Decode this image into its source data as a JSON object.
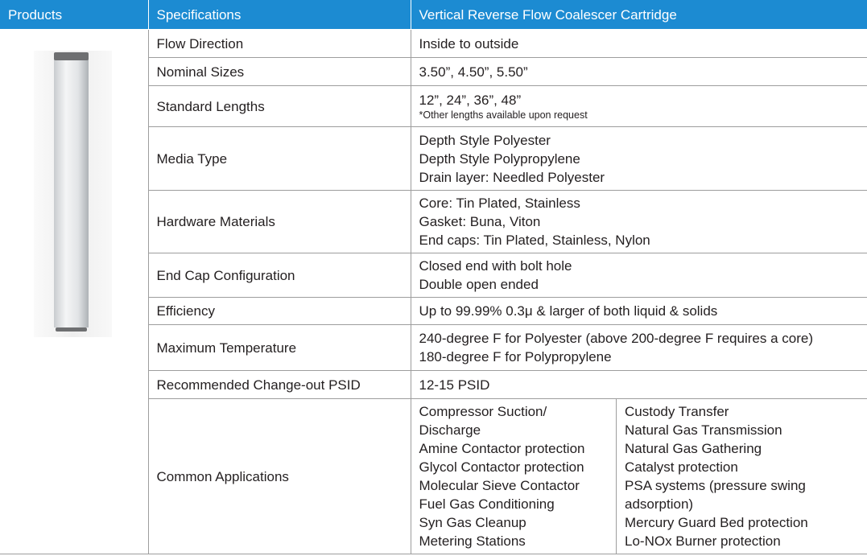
{
  "header": [
    "Products",
    "Specifications",
    "Vertical Reverse Flow Coalescer Cartridge"
  ],
  "rows": [
    {
      "label": "Flow Direction",
      "lines": [
        "Inside to outside"
      ]
    },
    {
      "label": "Nominal Sizes",
      "lines": [
        "3.50”, 4.50”, 5.50”"
      ]
    },
    {
      "label": "Standard Lengths",
      "lines": [
        "12”, 24”, 36”, 48”"
      ],
      "note": "*Other lengths available upon request"
    },
    {
      "label": "Media Type",
      "lines": [
        "Depth Style Polyester",
        "Depth Style Polypropylene",
        "Drain layer: Needled Polyester"
      ]
    },
    {
      "label": "Hardware Materials",
      "lines": [
        "Core: Tin Plated, Stainless",
        "Gasket: Buna, Viton",
        "End caps: Tin Plated, Stainless, Nylon"
      ]
    },
    {
      "label": "End Cap Configuration",
      "lines": [
        "Closed end with bolt hole",
        "Double open ended"
      ]
    },
    {
      "label": "Efficiency",
      "lines": [
        "Up to 99.99% 0.3μ & larger of both liquid & solids"
      ]
    },
    {
      "label": "Maximum Temperature",
      "lines": [
        "240-degree F for Polyester (above 200-degree F requires a core)",
        "180-degree F for Polypropylene"
      ]
    },
    {
      "label": "Recommended Change-out PSID",
      "lines": [
        "12-15 PSID"
      ]
    },
    {
      "label": "Common Applications",
      "columns": [
        [
          "Compressor Suction/ Discharge",
          "Amine Contactor protection",
          "Glycol Contactor protection",
          "Molecular Sieve Contactor",
          "Fuel Gas Conditioning",
          "Syn Gas Cleanup",
          "Metering Stations"
        ],
        [
          "Custody Transfer",
          "Natural Gas Transmission",
          "Natural Gas Gathering",
          "Catalyst protection",
          "PSA systems (pressure swing adsorption)",
          "Mercury Guard Bed protection",
          "Lo-NOx Burner protection"
        ]
      ]
    }
  ]
}
